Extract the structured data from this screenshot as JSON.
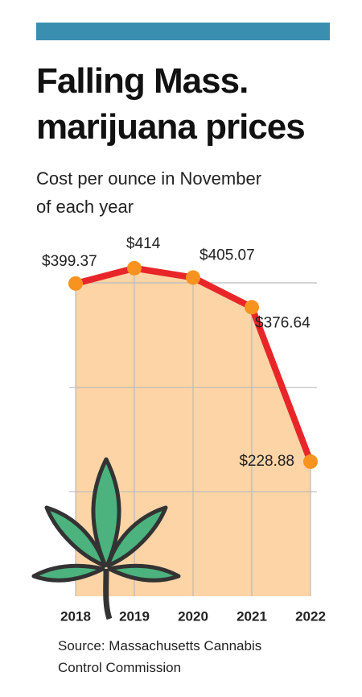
{
  "chart_data": {
    "type": "line",
    "title": "Falling Mass. marijuana prices",
    "subtitle": "Cost per ounce in November of each year",
    "categories": [
      "2018",
      "2019",
      "2020",
      "2021",
      "2022"
    ],
    "values": [
      399.37,
      414,
      405.07,
      376.64,
      228.88
    ],
    "value_labels": [
      "$399.37",
      "$414",
      "$405.07",
      "$376.64",
      "$228.88"
    ],
    "color": "#e8262a",
    "marker_color": "#f7931e",
    "area_color": "#fcd4a6",
    "ylim": [
      100,
      400
    ],
    "yticks": [
      200,
      300,
      400
    ],
    "grid": true,
    "source": "Source: Massachusetts Cannabis Control Commission"
  }
}
